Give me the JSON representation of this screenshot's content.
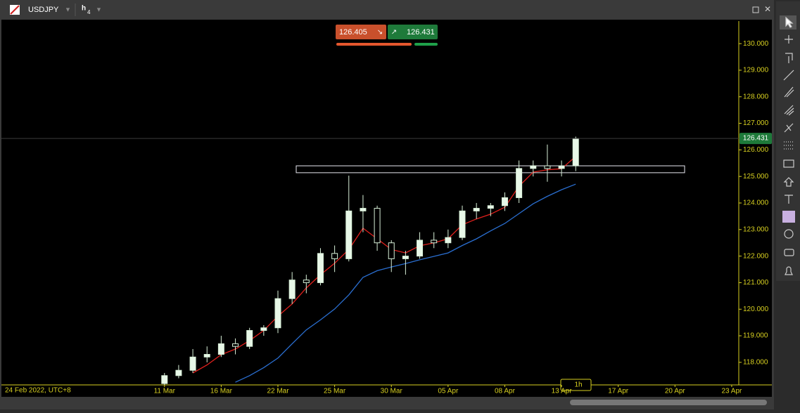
{
  "header": {
    "symbol": "USDJPY",
    "timeframe": "h",
    "timeframe_sub": "4",
    "sell_price": "126.405",
    "buy_price": "126.431"
  },
  "chart_data": {
    "type": "candlestick",
    "x_start_label": "24 Feb 2022, UTC+8",
    "categories": [
      null,
      null,
      null,
      null,
      null,
      null,
      null,
      null,
      null,
      null,
      null,
      "11 Mar",
      null,
      null,
      null,
      "16 Mar",
      null,
      null,
      null,
      "22 Mar",
      null,
      null,
      null,
      "25 Mar",
      null,
      null,
      null,
      "30 Mar",
      null,
      null,
      null,
      "05 Apr",
      null,
      null,
      null,
      "08 Apr",
      null,
      null,
      null,
      "13 Apr",
      null,
      null,
      null,
      "17 Apr",
      null,
      null,
      null,
      "20 Apr",
      null,
      null,
      null,
      "23 Apr"
    ],
    "open": [
      null,
      null,
      null,
      null,
      null,
      null,
      null,
      null,
      null,
      null,
      null,
      117.2,
      117.5,
      117.7,
      118.2,
      118.3,
      118.7,
      118.6,
      119.2,
      119.3,
      120.4,
      121.1,
      121.0,
      122.1,
      121.9,
      123.7,
      123.8,
      122.5,
      121.9,
      122.0,
      122.6,
      122.5,
      122.7,
      123.7,
      123.8,
      123.9,
      124.2,
      125.3,
      125.4,
      125.3,
      125.4,
      null,
      null,
      null,
      null,
      null,
      null,
      null,
      null,
      null,
      null,
      null
    ],
    "high": [
      null,
      null,
      null,
      null,
      null,
      null,
      null,
      null,
      null,
      null,
      null,
      117.6,
      117.9,
      118.5,
      118.6,
      119.0,
      118.9,
      119.3,
      119.4,
      120.7,
      121.4,
      121.3,
      122.3,
      122.4,
      125.03,
      124.3,
      123.9,
      122.6,
      122.2,
      122.9,
      122.9,
      123.0,
      123.9,
      124.0,
      124.0,
      124.4,
      125.6,
      125.6,
      126.2,
      125.6,
      126.5,
      null,
      null,
      null,
      null,
      null,
      null,
      null,
      null,
      null,
      null,
      null
    ],
    "low": [
      null,
      null,
      null,
      null,
      null,
      null,
      null,
      null,
      null,
      null,
      null,
      117.1,
      117.4,
      117.6,
      118.0,
      118.2,
      118.3,
      118.5,
      119.0,
      119.1,
      120.2,
      120.6,
      120.9,
      121.4,
      121.8,
      122.9,
      122.2,
      121.4,
      121.3,
      121.9,
      122.3,
      122.3,
      122.6,
      123.4,
      123.5,
      123.7,
      124.0,
      125.0,
      124.8,
      125.0,
      125.2,
      null,
      null,
      null,
      null,
      null,
      null,
      null,
      null,
      null,
      null,
      null
    ],
    "close": [
      null,
      null,
      null,
      null,
      null,
      null,
      null,
      null,
      null,
      null,
      null,
      117.5,
      117.7,
      118.2,
      118.3,
      118.7,
      118.6,
      119.2,
      119.3,
      120.4,
      121.1,
      121.0,
      122.1,
      121.9,
      123.7,
      123.8,
      122.5,
      121.9,
      122.0,
      122.6,
      122.5,
      122.7,
      123.7,
      123.8,
      123.9,
      124.2,
      125.3,
      125.4,
      125.3,
      125.4,
      126.43,
      null,
      null,
      null,
      null,
      null,
      null,
      null,
      null,
      null,
      null,
      null
    ],
    "series": [
      {
        "color": "#e0201c",
        "values": [
          null,
          null,
          null,
          null,
          null,
          null,
          null,
          null,
          null,
          null,
          null,
          null,
          null,
          117.6,
          117.9,
          118.29,
          118.5,
          118.82,
          119.2,
          119.74,
          120.2,
          120.8,
          121.3,
          121.73,
          122.25,
          123.05,
          122.65,
          122.25,
          122.12,
          122.39,
          122.5,
          122.65,
          123.18,
          123.4,
          123.58,
          123.84,
          124.63,
          125.16,
          125.25,
          125.29,
          125.75,
          null,
          null,
          null,
          null,
          null,
          null,
          null,
          null,
          null,
          null,
          null
        ]
      },
      {
        "color": "#2a6ed0",
        "values": [
          null,
          null,
          null,
          null,
          null,
          null,
          null,
          null,
          null,
          null,
          null,
          null,
          null,
          null,
          null,
          null,
          117.25,
          117.5,
          117.8,
          118.16,
          118.7,
          119.22,
          119.6,
          120.01,
          120.54,
          121.2,
          121.45,
          121.59,
          121.72,
          121.86,
          121.99,
          122.12,
          122.4,
          122.65,
          122.95,
          123.23,
          123.6,
          123.97,
          124.25,
          124.5,
          124.71,
          null,
          null,
          null,
          null,
          null,
          null,
          null,
          null,
          null,
          null,
          null
        ]
      }
    ],
    "ylim": [
      117.15,
      130.85
    ],
    "yticks": [
      {
        "value": 118,
        "label": "118.000"
      },
      {
        "value": 119,
        "label": "119.000"
      },
      {
        "value": 120,
        "label": "120.000"
      },
      {
        "value": 121,
        "label": "121.000"
      },
      {
        "value": 122,
        "label": "122.000"
      },
      {
        "value": 123,
        "label": "123.000"
      },
      {
        "value": 124,
        "label": "124.000"
      },
      {
        "value": 125,
        "label": "125.000"
      },
      {
        "value": 126,
        "label": "126.000"
      },
      {
        "value": 127,
        "label": "127.000"
      },
      {
        "value": 128,
        "label": "128.000"
      },
      {
        "value": 129,
        "label": "129.000"
      },
      {
        "value": 130,
        "label": "130.000"
      }
    ],
    "last_price": 126.431,
    "zone": [
      125.14,
      125.4
    ],
    "zoom_label": "1h"
  }
}
